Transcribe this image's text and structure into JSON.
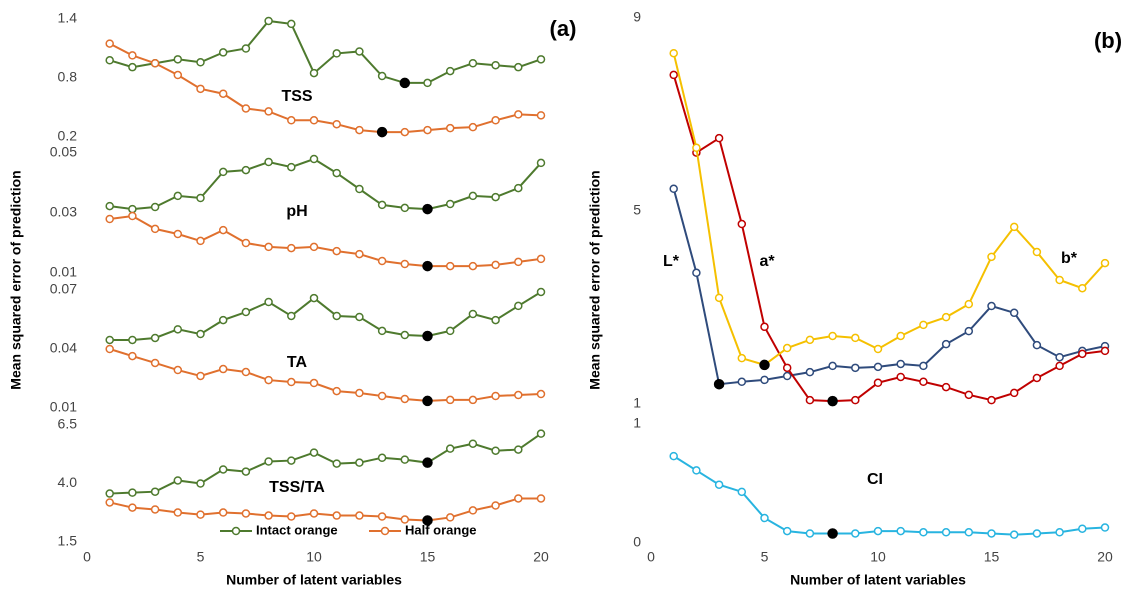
{
  "chart_data": [
    {
      "type": "line",
      "panel_label": "(a)",
      "x_label": "Number of latent variables",
      "y_label": "Mean squared error of prediction",
      "x": [
        1,
        2,
        3,
        4,
        5,
        6,
        7,
        8,
        9,
        10,
        11,
        12,
        13,
        14,
        15,
        16,
        17,
        18,
        19,
        20
      ],
      "xlim": [
        0,
        20
      ],
      "xticks": [
        0,
        5,
        10,
        15,
        20
      ],
      "legend": {
        "position": "bottom",
        "entries": [
          {
            "name": "Intact orange",
            "color": "#4e7a2e"
          },
          {
            "name": "Half orange",
            "color": "#e0702e"
          }
        ]
      },
      "subplots": [
        {
          "label": "TSS",
          "ylim": [
            0.2,
            1.4
          ],
          "yticks": [
            0.2,
            0.8,
            1.4
          ],
          "series": [
            {
              "values": [
                0.98,
                0.91,
                0.95,
                0.99,
                0.96,
                1.06,
                1.1,
                1.38,
                1.35,
                0.85,
                1.05,
                1.07,
                0.82,
                0.75,
                0.75,
                0.87,
                0.95,
                0.93,
                0.91,
                0.99
              ],
              "selected_x": 14
            },
            {
              "values": [
                1.15,
                1.03,
                0.95,
                0.83,
                0.69,
                0.64,
                0.49,
                0.46,
                0.37,
                0.37,
                0.33,
                0.27,
                0.25,
                0.25,
                0.27,
                0.29,
                0.3,
                0.37,
                0.43,
                0.42
              ],
              "selected_x": 13
            }
          ]
        },
        {
          "label": "pH",
          "ylim": [
            0.01,
            0.05
          ],
          "yticks": [
            0.01,
            0.03,
            0.05
          ],
          "series": [
            {
              "values": [
                0.0323,
                0.0313,
                0.032,
                0.0357,
                0.035,
                0.0437,
                0.0443,
                0.047,
                0.0453,
                0.048,
                0.0433,
                0.038,
                0.0327,
                0.0317,
                0.0313,
                0.033,
                0.0357,
                0.0353,
                0.0383,
                0.0467
              ],
              "selected_x": 15
            },
            {
              "values": [
                0.028,
                0.029,
                0.0247,
                0.023,
                0.0207,
                0.0243,
                0.02,
                0.0187,
                0.0183,
                0.0187,
                0.0173,
                0.0163,
                0.014,
                0.013,
                0.0123,
                0.0123,
                0.0123,
                0.0127,
                0.0137,
                0.0147
              ],
              "selected_x": 15
            }
          ]
        },
        {
          "label": "TA",
          "ylim": [
            0.01,
            0.07
          ],
          "yticks": [
            0.01,
            0.04,
            0.07
          ],
          "series": [
            {
              "values": [
                0.0446,
                0.0446,
                0.0456,
                0.05,
                0.0476,
                0.0547,
                0.0588,
                0.0639,
                0.0568,
                0.0659,
                0.0568,
                0.0563,
                0.0492,
                0.0471,
                0.0466,
                0.0492,
                0.0578,
                0.0547,
                0.0619,
                0.069
              ],
              "selected_x": 15
            },
            {
              "values": [
                0.04,
                0.0364,
                0.0329,
                0.0293,
                0.0263,
                0.0298,
                0.0283,
                0.0242,
                0.0232,
                0.0227,
                0.0186,
                0.0176,
                0.0161,
                0.0146,
                0.0136,
                0.0141,
                0.0141,
                0.0161,
                0.0166,
                0.0171
              ],
              "selected_x": 15
            }
          ]
        },
        {
          "label": "TSS/TA",
          "ylim": [
            1.5,
            6.5
          ],
          "yticks": [
            1.5,
            {
              "value": 4,
              "label": "4.0"
            },
            6.5
          ],
          "series": [
            {
              "values": [
                3.57,
                3.61,
                3.65,
                4.13,
                4.0,
                4.6,
                4.51,
                4.94,
                4.98,
                5.32,
                4.85,
                4.89,
                5.1,
                5.02,
                4.89,
                5.49,
                5.7,
                5.4,
                5.45,
                6.13
              ],
              "selected_x": 15
            },
            {
              "values": [
                3.19,
                2.97,
                2.89,
                2.76,
                2.67,
                2.76,
                2.72,
                2.63,
                2.59,
                2.72,
                2.63,
                2.63,
                2.59,
                2.46,
                2.42,
                2.55,
                2.85,
                3.06,
                3.36,
                3.36
              ],
              "selected_x": 15
            }
          ]
        }
      ]
    },
    {
      "type": "line",
      "panel_label": "(b)",
      "x_label": "Number of latent variables",
      "y_label": "Mean squared error of prediction",
      "x": [
        1,
        2,
        3,
        4,
        5,
        6,
        7,
        8,
        9,
        10,
        11,
        12,
        13,
        14,
        15,
        16,
        17,
        18,
        19,
        20
      ],
      "xlim": [
        0,
        20
      ],
      "xticks": [
        0,
        5,
        10,
        15,
        20
      ],
      "legend": "inline",
      "subplots": [
        {
          "ylim": [
            1,
            9
          ],
          "yticks": [
            1,
            5,
            9
          ],
          "series": [
            {
              "name": "L*",
              "color": "#2f4b7c",
              "values": [
                5.46,
                3.72,
                1.41,
                1.46,
                1.5,
                1.58,
                1.66,
                1.79,
                1.75,
                1.77,
                1.83,
                1.79,
                2.24,
                2.51,
                3.03,
                2.89,
                2.22,
                1.97,
                2.1,
                2.2
              ],
              "selected_x": 3
            },
            {
              "name": "a*",
              "color": "#c00000",
              "values": [
                7.82,
                6.21,
                6.51,
                4.73,
                2.6,
                1.75,
                1.08,
                1.06,
                1.08,
                1.44,
                1.56,
                1.46,
                1.35,
                1.19,
                1.08,
                1.23,
                1.54,
                1.79,
                2.04,
                2.1
              ],
              "selected_x": 8
            },
            {
              "name": "b*",
              "color": "#f5c000",
              "values": [
                8.27,
                6.31,
                3.2,
                1.95,
                1.81,
                2.16,
                2.33,
                2.41,
                2.37,
                2.14,
                2.41,
                2.64,
                2.8,
                3.07,
                4.05,
                4.67,
                4.15,
                3.57,
                3.4,
                3.92
              ],
              "selected_x": 5
            }
          ]
        },
        {
          "ylim": [
            0,
            1
          ],
          "yticks": [
            0,
            1
          ],
          "series": [
            {
              "name": "CI",
              "color": "#28b4e0",
              "values": [
                0.73,
                0.61,
                0.49,
                0.43,
                0.21,
                0.1,
                0.08,
                0.08,
                0.08,
                0.1,
                0.1,
                0.09,
                0.09,
                0.09,
                0.08,
                0.07,
                0.08,
                0.09,
                0.12,
                0.13
              ],
              "selected_x": 8
            }
          ]
        }
      ]
    }
  ]
}
